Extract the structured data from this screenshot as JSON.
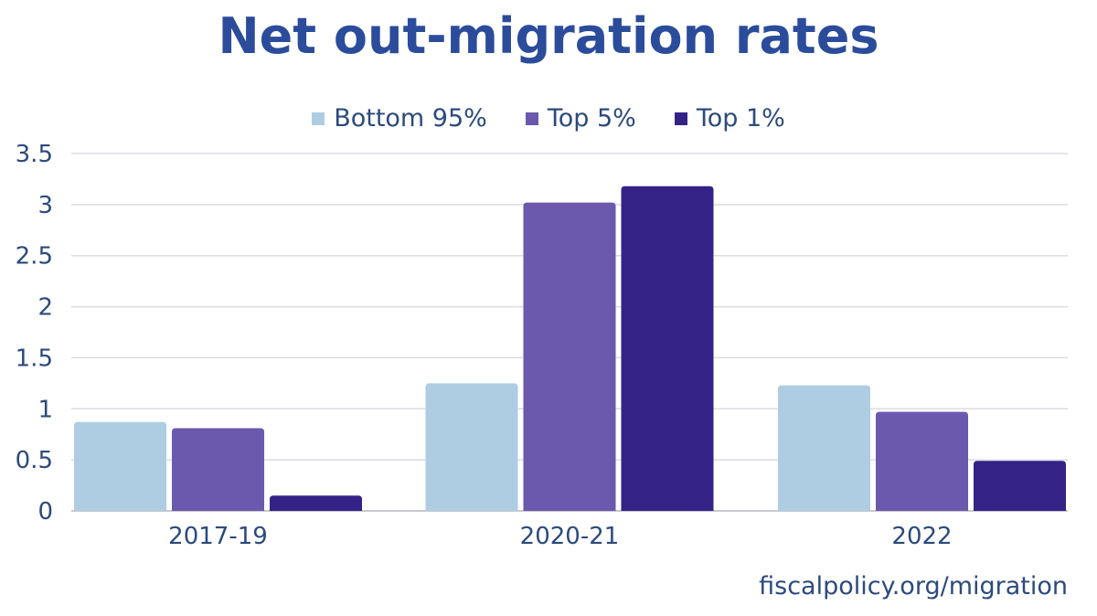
{
  "chart_data": {
    "type": "bar",
    "title": "Net out-migration rates",
    "categories": [
      "2017-19",
      "2020-21",
      "2022"
    ],
    "series": [
      {
        "name": "Bottom 95%",
        "color": "#aecde3",
        "values": [
          0.87,
          1.25,
          1.23
        ]
      },
      {
        "name": "Top 5%",
        "color": "#6a59ad",
        "values": [
          0.81,
          3.02,
          0.97
        ]
      },
      {
        "name": "Top 1%",
        "color": "#352287",
        "values": [
          0.15,
          3.18,
          0.49
        ]
      }
    ],
    "yticks": [
      "0",
      "0.5",
      "1",
      "1.5",
      "2",
      "2.5",
      "3",
      "3.5"
    ],
    "ylim": [
      0,
      3.5
    ],
    "grid": true,
    "legend_position": "top",
    "xlabel": "",
    "ylabel": ""
  },
  "source": "fiscalpolicy.org/migration"
}
